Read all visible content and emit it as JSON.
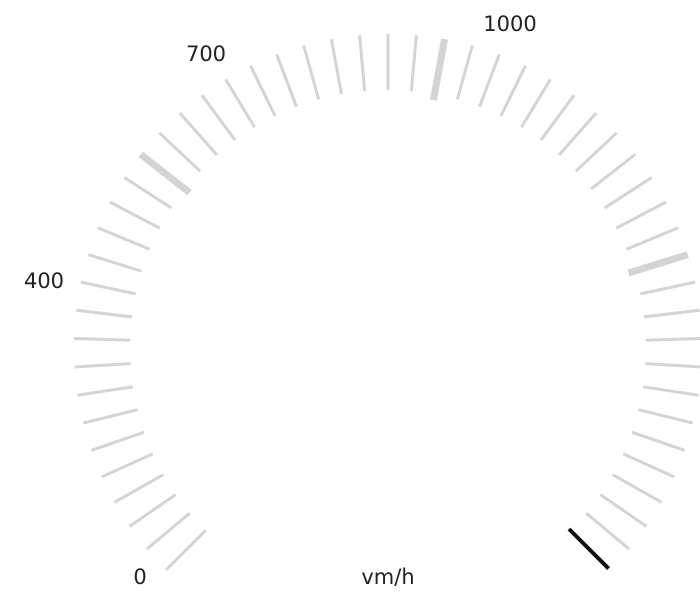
{
  "gauge": {
    "unit": "vm/h",
    "min": 0,
    "max": 1300,
    "value": 1300,
    "minor_step": 25,
    "major_step": 300,
    "labels": [
      {
        "value": 0,
        "text": "0"
      },
      {
        "value": 400,
        "text": "400"
      },
      {
        "value": 700,
        "text": "700"
      },
      {
        "value": 1000,
        "text": "1000"
      }
    ],
    "colors": {
      "tick": "#d4d4d4",
      "needle": "#111111",
      "text": "#222222"
    }
  }
}
